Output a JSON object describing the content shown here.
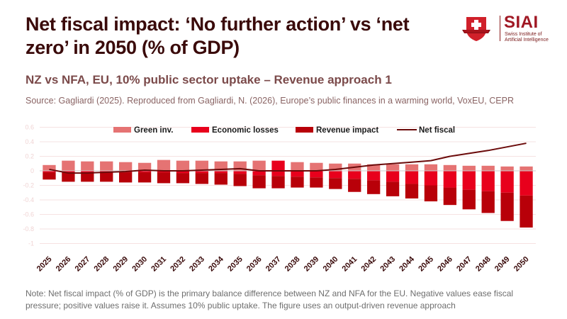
{
  "header": {
    "title": "Net fiscal impact: ‘No further action’ vs ‘net zero’ in 2050 (% of GDP)",
    "subtitle": "NZ vs NFA, EU, 10% public sector uptake – Revenue approach 1",
    "source": "Source: Gagliardi (2025). Reproduced from Gagliardi, N. (2026), Europe’s public finances in a warming world, VoxEU, CEPR"
  },
  "logo": {
    "brand": "SIAI",
    "brand_sub_line1": "Swiss Institute of",
    "brand_sub_line2": "Artificial Intelligence",
    "icon": "shield-cross-icon"
  },
  "footer": {
    "note": "Note: Net fiscal impact (% of GDP) is the primary balance difference between NZ and NFA for the EU. Negative values ease fiscal pressure; positive values raise it. Assumes 10% public uptake. The figure uses an output-driven revenue approach"
  },
  "colors": {
    "green_inv": "#e57373",
    "economic_losses": "#e8001c",
    "revenue_impact": "#b80009",
    "net_fiscal": "#6b0a0a",
    "grid": "#f6e2e2",
    "zero_line": "#cccccc"
  },
  "chart_data": {
    "type": "bar",
    "stacked": true,
    "title": "Net fiscal impact: ‘No further action’ vs ‘net zero’ in 2050 (% of GDP)",
    "xlabel": "",
    "ylabel": "",
    "ylim": [
      -1,
      0.6
    ],
    "yticks": [
      0.6,
      0.4,
      0.2,
      0,
      -0.2,
      -0.4,
      -0.6,
      -0.8,
      -1
    ],
    "ytick_labels": [
      "0.6",
      "0.4",
      "0.2",
      "0",
      "-0.2",
      "-0.4",
      "-0.6",
      "-0.8",
      "-1"
    ],
    "grid": true,
    "legend_position": "top",
    "categories": [
      "2025",
      "2026",
      "2027",
      "2028",
      "2029",
      "2030",
      "2031",
      "2032",
      "2033",
      "2034",
      "2035",
      "2036",
      "2037",
      "2038",
      "2039",
      "2040",
      "2041",
      "2042",
      "2043",
      "2044",
      "2045",
      "2046",
      "2047",
      "2048",
      "2049",
      "2050"
    ],
    "series": [
      {
        "name": "Green inv.",
        "kind": "bar",
        "values": [
          0.08,
          0.14,
          0.13,
          0.13,
          0.12,
          0.11,
          0.15,
          0.14,
          0.14,
          0.13,
          0.13,
          0.14,
          0,
          0.12,
          0.11,
          0.1,
          0.1,
          0.09,
          0.09,
          0.09,
          0.09,
          0.08,
          0.07,
          0.07,
          0.06,
          0.06
        ]
      },
      {
        "name": "Economic losses",
        "kind": "bar",
        "values": [
          -0.02,
          -0.02,
          -0.02,
          -0.02,
          -0.02,
          -0.02,
          -0.02,
          -0.03,
          -0.03,
          -0.03,
          -0.04,
          -0.06,
          -0.07,
          -0.08,
          -0.09,
          -0.1,
          -0.11,
          -0.13,
          -0.15,
          -0.18,
          -0.2,
          -0.23,
          -0.26,
          -0.28,
          -0.3,
          -0.34
        ],
        "positive_values": [
          0,
          0,
          0,
          0,
          0,
          0,
          0,
          0,
          0,
          0,
          0,
          0,
          0.14,
          0,
          0,
          0,
          0,
          0,
          0,
          0,
          0,
          0,
          0,
          0,
          0,
          0
        ]
      },
      {
        "name": "Revenue impact",
        "kind": "bar",
        "values": [
          -0.1,
          -0.13,
          -0.13,
          -0.13,
          -0.14,
          -0.14,
          -0.15,
          -0.14,
          -0.15,
          -0.16,
          -0.17,
          -0.18,
          -0.17,
          -0.15,
          -0.14,
          -0.15,
          -0.18,
          -0.19,
          -0.2,
          -0.2,
          -0.22,
          -0.24,
          -0.27,
          -0.3,
          -0.39,
          -0.44
        ]
      },
      {
        "name": "Net fiscal",
        "kind": "line",
        "values": [
          0.02,
          -0.03,
          -0.03,
          -0.02,
          -0.01,
          0.01,
          0.0,
          0.0,
          0.01,
          0.02,
          0.03,
          0.0,
          0.0,
          0.0,
          0.0,
          0.02,
          0.05,
          0.08,
          0.1,
          0.12,
          0.14,
          0.2,
          0.24,
          0.28,
          0.33,
          0.38
        ]
      }
    ]
  }
}
